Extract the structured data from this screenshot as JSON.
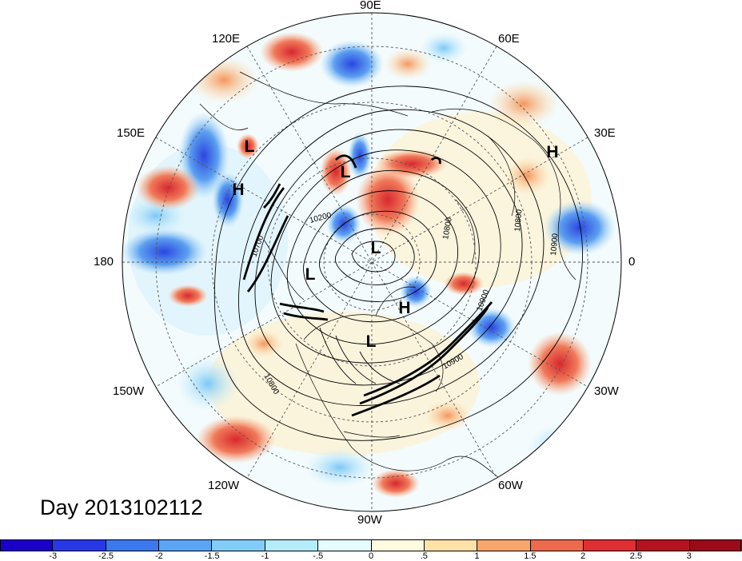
{
  "title": "Day 2013102112",
  "longitude_labels": {
    "top": "90E",
    "top_left": "120E",
    "top_right": "60E",
    "upper_left": "150E",
    "upper_right": "30E",
    "left": "180",
    "right": "0",
    "lower_left": "150W",
    "lower_right": "30W",
    "bottom_left": "120W",
    "bottom_right": "60W",
    "bottom": "90W"
  },
  "pressure_centers": [
    {
      "label": "L"
    },
    {
      "label": "H"
    },
    {
      "label": "L"
    },
    {
      "label": "L"
    },
    {
      "label": "L"
    },
    {
      "label": "H"
    },
    {
      "label": "L"
    },
    {
      "label": "H"
    }
  ],
  "contour_labels": [
    "10200",
    "10700",
    "10800",
    "10900",
    "10800",
    "10900",
    "10800",
    "10900"
  ],
  "colorbar": {
    "ticks": [
      "-3",
      "-2.5",
      "-2",
      "-1.5",
      "-1",
      "-.5",
      "0",
      ".5",
      "1",
      "1.5",
      "2",
      "2.5",
      "3"
    ],
    "colors": [
      "#1a00c8",
      "#2838e6",
      "#3c78ee",
      "#5aa5f5",
      "#82cdf8",
      "#b4ecfa",
      "#e6fcff",
      "#fffbe0",
      "#fde2a8",
      "#f8a66c",
      "#ee6a4c",
      "#e02f32",
      "#b4121e",
      "#9a0a18"
    ]
  }
}
